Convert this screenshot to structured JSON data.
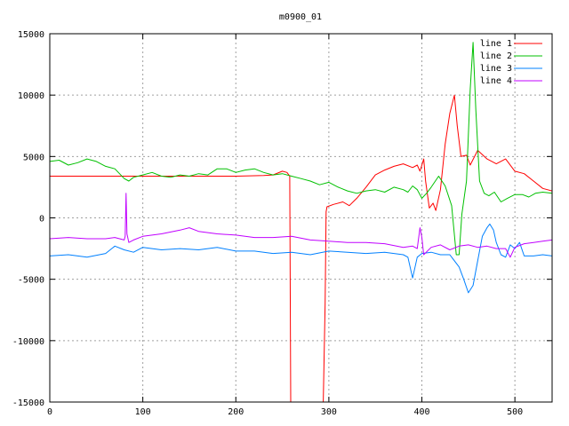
{
  "chart_data": {
    "type": "line",
    "title": "m0900_01",
    "xlabel": "",
    "ylabel": "",
    "xlim": [
      0,
      540
    ],
    "ylim": [
      -15000,
      15000
    ],
    "x_ticks": [
      0,
      100,
      200,
      300,
      400,
      500
    ],
    "y_ticks": [
      -15000,
      -10000,
      -5000,
      0,
      5000,
      10000,
      15000
    ],
    "x_tick_labels": [
      "0",
      "100",
      "200",
      "300",
      "400",
      "500"
    ],
    "y_tick_labels": [
      "-15000",
      "-10000",
      "-5000",
      "0",
      "5000",
      "10000",
      "15000"
    ],
    "grid": true,
    "legend_position": "top-right",
    "series": [
      {
        "name": "line 1",
        "color": "#ff0000",
        "points": [
          [
            0,
            3400
          ],
          [
            50,
            3400
          ],
          [
            100,
            3400
          ],
          [
            150,
            3400
          ],
          [
            200,
            3400
          ],
          [
            230,
            3450
          ],
          [
            240,
            3500
          ],
          [
            250,
            3800
          ],
          [
            255,
            3700
          ],
          [
            258,
            3400
          ],
          [
            259,
            -15000
          ],
          [
            294,
            -15000
          ],
          [
            296,
            -7000
          ],
          [
            297,
            500
          ],
          [
            298,
            900
          ],
          [
            305,
            1100
          ],
          [
            315,
            1300
          ],
          [
            322,
            1000
          ],
          [
            330,
            1600
          ],
          [
            340,
            2500
          ],
          [
            350,
            3500
          ],
          [
            360,
            3900
          ],
          [
            370,
            4200
          ],
          [
            380,
            4400
          ],
          [
            390,
            4100
          ],
          [
            395,
            4300
          ],
          [
            398,
            3800
          ],
          [
            402,
            4800
          ],
          [
            404,
            3000
          ],
          [
            408,
            800
          ],
          [
            412,
            1200
          ],
          [
            415,
            600
          ],
          [
            420,
            2300
          ],
          [
            425,
            6000
          ],
          [
            430,
            8500
          ],
          [
            435,
            10000
          ],
          [
            438,
            7500
          ],
          [
            442,
            5000
          ],
          [
            448,
            5100
          ],
          [
            452,
            4300
          ],
          [
            460,
            5500
          ],
          [
            470,
            4800
          ],
          [
            480,
            4400
          ],
          [
            490,
            4800
          ],
          [
            500,
            3800
          ],
          [
            510,
            3600
          ],
          [
            520,
            3000
          ],
          [
            530,
            2400
          ],
          [
            540,
            2200
          ]
        ]
      },
      {
        "name": "line 2",
        "color": "#00c000",
        "points": [
          [
            0,
            4600
          ],
          [
            10,
            4700
          ],
          [
            20,
            4300
          ],
          [
            30,
            4500
          ],
          [
            40,
            4800
          ],
          [
            50,
            4600
          ],
          [
            60,
            4200
          ],
          [
            70,
            4000
          ],
          [
            80,
            3200
          ],
          [
            85,
            3000
          ],
          [
            90,
            3300
          ],
          [
            100,
            3500
          ],
          [
            110,
            3700
          ],
          [
            120,
            3400
          ],
          [
            130,
            3300
          ],
          [
            140,
            3500
          ],
          [
            150,
            3400
          ],
          [
            160,
            3600
          ],
          [
            170,
            3500
          ],
          [
            180,
            4000
          ],
          [
            190,
            4000
          ],
          [
            200,
            3700
          ],
          [
            210,
            3900
          ],
          [
            220,
            4000
          ],
          [
            230,
            3700
          ],
          [
            240,
            3500
          ],
          [
            250,
            3600
          ],
          [
            260,
            3400
          ],
          [
            270,
            3200
          ],
          [
            280,
            3000
          ],
          [
            290,
            2700
          ],
          [
            300,
            2900
          ],
          [
            310,
            2500
          ],
          [
            320,
            2200
          ],
          [
            330,
            2000
          ],
          [
            340,
            2200
          ],
          [
            350,
            2300
          ],
          [
            360,
            2100
          ],
          [
            370,
            2500
          ],
          [
            380,
            2300
          ],
          [
            385,
            2100
          ],
          [
            390,
            2600
          ],
          [
            395,
            2300
          ],
          [
            400,
            1600
          ],
          [
            405,
            2000
          ],
          [
            410,
            2500
          ],
          [
            418,
            3400
          ],
          [
            425,
            2600
          ],
          [
            432,
            1000
          ],
          [
            437,
            -3000
          ],
          [
            440,
            -3000
          ],
          [
            443,
            300
          ],
          [
            448,
            3000
          ],
          [
            452,
            10500
          ],
          [
            455,
            14300
          ],
          [
            458,
            8800
          ],
          [
            462,
            3000
          ],
          [
            467,
            2000
          ],
          [
            472,
            1800
          ],
          [
            478,
            2100
          ],
          [
            485,
            1300
          ],
          [
            492,
            1600
          ],
          [
            500,
            1900
          ],
          [
            508,
            1900
          ],
          [
            515,
            1700
          ],
          [
            522,
            2000
          ],
          [
            530,
            2100
          ],
          [
            540,
            2000
          ]
        ]
      },
      {
        "name": "line 3",
        "color": "#0080ff",
        "points": [
          [
            0,
            -3100
          ],
          [
            20,
            -3000
          ],
          [
            40,
            -3200
          ],
          [
            60,
            -2900
          ],
          [
            70,
            -2300
          ],
          [
            80,
            -2600
          ],
          [
            90,
            -2800
          ],
          [
            100,
            -2400
          ],
          [
            120,
            -2600
          ],
          [
            140,
            -2500
          ],
          [
            160,
            -2600
          ],
          [
            180,
            -2400
          ],
          [
            200,
            -2700
          ],
          [
            220,
            -2700
          ],
          [
            240,
            -2900
          ],
          [
            260,
            -2800
          ],
          [
            280,
            -3000
          ],
          [
            300,
            -2700
          ],
          [
            320,
            -2800
          ],
          [
            340,
            -2900
          ],
          [
            360,
            -2800
          ],
          [
            380,
            -3000
          ],
          [
            385,
            -3200
          ],
          [
            390,
            -4900
          ],
          [
            395,
            -3200
          ],
          [
            400,
            -2900
          ],
          [
            410,
            -2800
          ],
          [
            420,
            -3000
          ],
          [
            430,
            -3000
          ],
          [
            440,
            -4000
          ],
          [
            445,
            -5000
          ],
          [
            450,
            -6100
          ],
          [
            455,
            -5500
          ],
          [
            460,
            -3500
          ],
          [
            465,
            -1500
          ],
          [
            470,
            -800
          ],
          [
            473,
            -500
          ],
          [
            477,
            -1000
          ],
          [
            480,
            -2000
          ],
          [
            485,
            -3000
          ],
          [
            490,
            -3200
          ],
          [
            495,
            -2200
          ],
          [
            500,
            -2500
          ],
          [
            505,
            -2000
          ],
          [
            510,
            -3100
          ],
          [
            520,
            -3100
          ],
          [
            530,
            -3000
          ],
          [
            540,
            -3100
          ]
        ]
      },
      {
        "name": "line 4",
        "color": "#c000ff",
        "points": [
          [
            0,
            -1700
          ],
          [
            20,
            -1600
          ],
          [
            40,
            -1700
          ],
          [
            60,
            -1700
          ],
          [
            70,
            -1600
          ],
          [
            80,
            -1800
          ],
          [
            81,
            -1500
          ],
          [
            82,
            2000
          ],
          [
            83,
            -1300
          ],
          [
            85,
            -2000
          ],
          [
            90,
            -1800
          ],
          [
            100,
            -1500
          ],
          [
            120,
            -1300
          ],
          [
            140,
            -1000
          ],
          [
            150,
            -800
          ],
          [
            160,
            -1100
          ],
          [
            180,
            -1300
          ],
          [
            200,
            -1400
          ],
          [
            220,
            -1600
          ],
          [
            240,
            -1600
          ],
          [
            260,
            -1500
          ],
          [
            280,
            -1800
          ],
          [
            300,
            -1900
          ],
          [
            320,
            -2000
          ],
          [
            340,
            -2000
          ],
          [
            360,
            -2100
          ],
          [
            380,
            -2400
          ],
          [
            390,
            -2300
          ],
          [
            395,
            -2500
          ],
          [
            398,
            -800
          ],
          [
            400,
            -1600
          ],
          [
            402,
            -3000
          ],
          [
            410,
            -2400
          ],
          [
            420,
            -2200
          ],
          [
            430,
            -2600
          ],
          [
            440,
            -2300
          ],
          [
            450,
            -2200
          ],
          [
            460,
            -2400
          ],
          [
            470,
            -2300
          ],
          [
            480,
            -2500
          ],
          [
            490,
            -2500
          ],
          [
            495,
            -3200
          ],
          [
            500,
            -2400
          ],
          [
            510,
            -2100
          ],
          [
            520,
            -2000
          ],
          [
            530,
            -1900
          ],
          [
            540,
            -1800
          ]
        ]
      }
    ]
  }
}
